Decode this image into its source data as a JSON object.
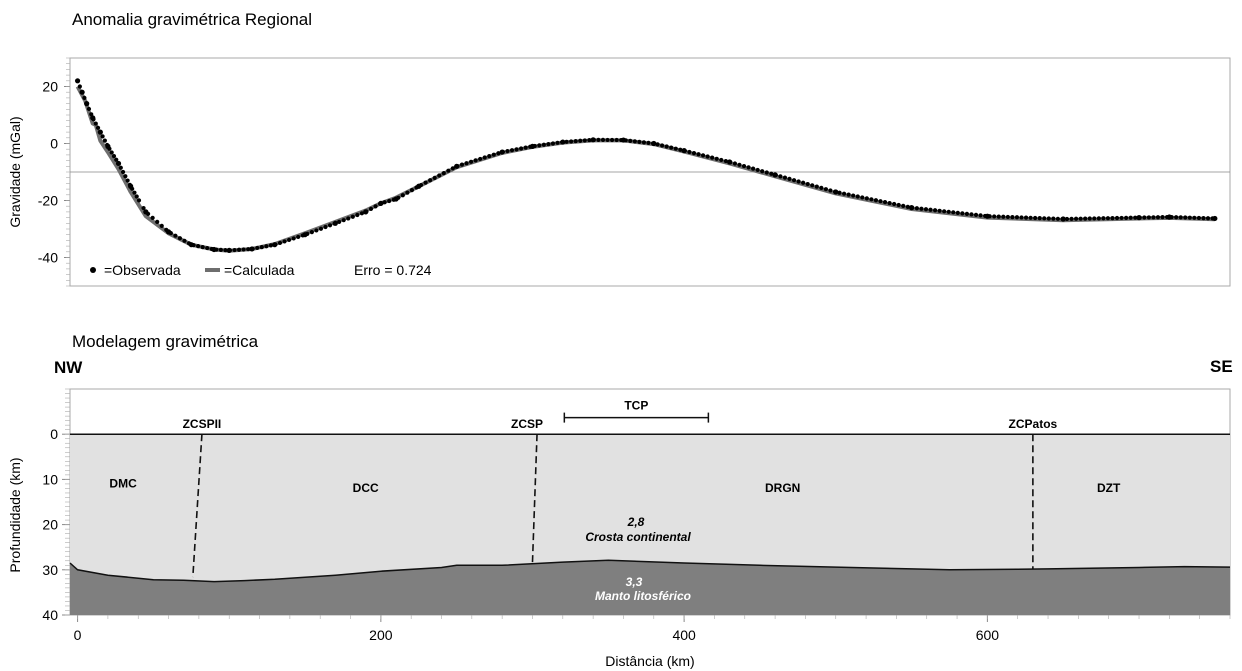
{
  "top_chart": {
    "title": "Anomalia gravimétrica Regional",
    "ylabel": "Gravidade (mGal)",
    "yticks": [
      "20",
      "0",
      "-20",
      "-40"
    ],
    "legend": {
      "observed": "=Observada",
      "calculated": "=Calculada",
      "error": "Erro = 0.724"
    }
  },
  "bottom_chart": {
    "title": "Modelagem gravimétrica",
    "ylabel": "Profundidade (km)",
    "xlabel": "Distância (km)",
    "yticks": [
      "0",
      "10",
      "20",
      "30",
      "40"
    ],
    "xticks": [
      "0",
      "200",
      "400",
      "600"
    ],
    "dir_left": "NW",
    "dir_right": "SE",
    "faults": [
      "ZCSPII",
      "ZCSP",
      "ZCPatos"
    ],
    "tcp_label": "TCP",
    "domains": [
      "DMC",
      "DCC",
      "DRGN",
      "DZT"
    ],
    "crust_density": "2,8",
    "crust_label": "Crosta continental",
    "mantle_density": "3,3",
    "mantle_label": "Manto litosférico"
  },
  "chart_data": [
    {
      "type": "scatter",
      "title": "Anomalia gravimétrica Regional",
      "xlabel": "",
      "ylabel": "Gravidade (mGal)",
      "x_unit": "km",
      "xlim": [
        -5,
        760
      ],
      "ylim": [
        -50,
        30
      ],
      "grid": false,
      "legend_position": "bottom-left",
      "series": [
        {
          "name": "Observada",
          "style": "points",
          "x": [
            0,
            3,
            6,
            10,
            15,
            20,
            27,
            35,
            45,
            60,
            75,
            90,
            100,
            115,
            130,
            150,
            170,
            190,
            200,
            210,
            225,
            250,
            280,
            300,
            320,
            340,
            360,
            380,
            400,
            430,
            460,
            500,
            550,
            600,
            650,
            700,
            720,
            750
          ],
          "y": [
            22,
            18,
            14,
            9,
            4,
            -1,
            -7,
            -15,
            -24,
            -31,
            -35.5,
            -37.2,
            -37.5,
            -37,
            -35.5,
            -32,
            -28,
            -24,
            -21,
            -19.5,
            -15,
            -8,
            -3,
            -1,
            0.5,
            1.3,
            1.2,
            0,
            -2.5,
            -6.5,
            -11,
            -17,
            -22.5,
            -25.5,
            -26.5,
            -26,
            -25.8,
            -26.3
          ]
        },
        {
          "name": "Calculada",
          "style": "line",
          "x": [
            0,
            5,
            10,
            12,
            15,
            20,
            27,
            35,
            45,
            60,
            75,
            90,
            100,
            115,
            130,
            150,
            170,
            190,
            200,
            210,
            225,
            250,
            280,
            300,
            320,
            340,
            360,
            380,
            400,
            430,
            460,
            500,
            550,
            600,
            650,
            700,
            720,
            750
          ],
          "y": [
            20,
            15,
            7,
            6.5,
            1,
            -3,
            -9,
            -17,
            -25.5,
            -31.5,
            -35.5,
            -37.2,
            -37.6,
            -37,
            -35.3,
            -31.5,
            -27.5,
            -23.5,
            -21,
            -19,
            -15,
            -8.3,
            -3.3,
            -1.2,
            0.3,
            1.1,
            1.1,
            -0.2,
            -2.8,
            -7,
            -11.5,
            -17.5,
            -23,
            -26,
            -26.9,
            -26.3,
            -26.1,
            -26.6
          ]
        }
      ],
      "reference_line": -10
    },
    {
      "type": "area",
      "title": "Modelagem gravimétrica",
      "xlabel": "Distância (km)",
      "ylabel": "Profundidade (km)",
      "xlim": [
        -5,
        760
      ],
      "ylim": [
        40,
        -10
      ],
      "grid": false,
      "layers": [
        {
          "name": "Crosta continental",
          "density": "2,8",
          "color": "#e1e1e1"
        },
        {
          "name": "Manto litosférico",
          "density": "3,3",
          "color": "#7f7f7f"
        }
      ],
      "moho": {
        "x": [
          -5,
          0,
          20,
          50,
          70,
          90,
          110,
          130,
          170,
          200,
          240,
          250,
          280,
          320,
          350,
          400,
          450,
          500,
          550,
          575,
          620,
          640,
          700,
          730,
          760
        ],
        "y": [
          28.5,
          30,
          31.2,
          32.2,
          32.3,
          32.6,
          32.4,
          32.1,
          31.2,
          30.3,
          29.5,
          29,
          29,
          28.3,
          27.9,
          28.5,
          29,
          29.4,
          29.8,
          30,
          29.9,
          29.8,
          29.5,
          29.3,
          29.4
        ]
      },
      "faults": [
        {
          "name": "ZCSPII",
          "x_top": 82,
          "x_bottom": 76,
          "depth_bottom": 31.6
        },
        {
          "name": "ZCSP",
          "x_top": 303,
          "x_bottom": 300,
          "depth_bottom": 28.3
        },
        {
          "name": "ZCPatos",
          "x_top": 630,
          "x_bottom": 630,
          "depth_bottom": 29.8
        }
      ],
      "tcp_segment": {
        "label": "TCP",
        "x": [
          321,
          416
        ],
        "depth": -5
      },
      "domain_labels": [
        {
          "name": "DMC",
          "x": 30,
          "depth": 14
        },
        {
          "name": "DCC",
          "x": 190,
          "depth": 15
        },
        {
          "name": "DRGN",
          "x": 465,
          "depth": 15
        },
        {
          "name": "DZT",
          "x": 680,
          "depth": 15
        }
      ]
    }
  ]
}
